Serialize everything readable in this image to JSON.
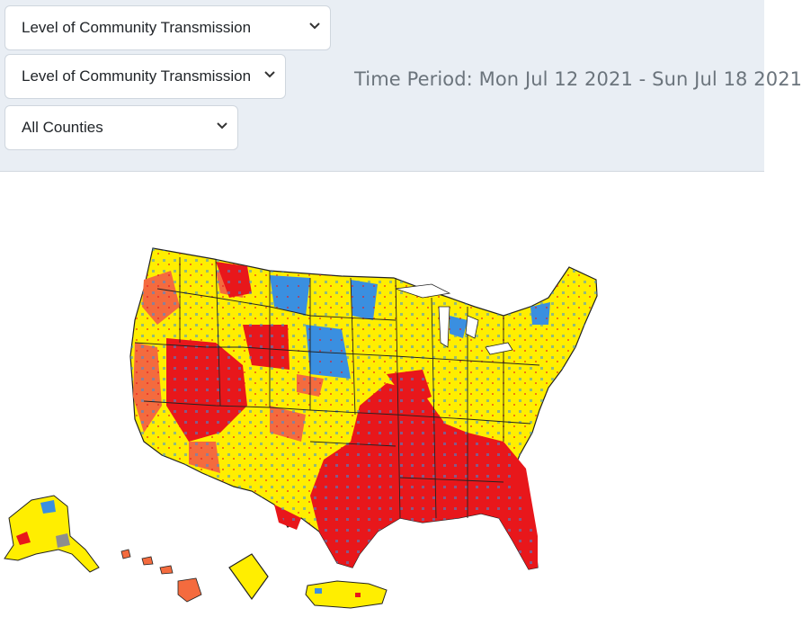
{
  "filters": {
    "metric_select_1": "Level of Community Transmission",
    "metric_select_2": "Level of Community Transmission",
    "area_select": "All Counties"
  },
  "time_period": "Time Period: Mon Jul 12 2021 - Sun Jul 18 2021",
  "map": {
    "legend_colors": {
      "high": "#e8171b",
      "substantial": "#f46b3e",
      "moderate": "#ffee00",
      "low": "#3a8fe0",
      "no_data": "#8e8e8e"
    },
    "icons": {
      "dropdown": "chevron-down-icon"
    }
  }
}
